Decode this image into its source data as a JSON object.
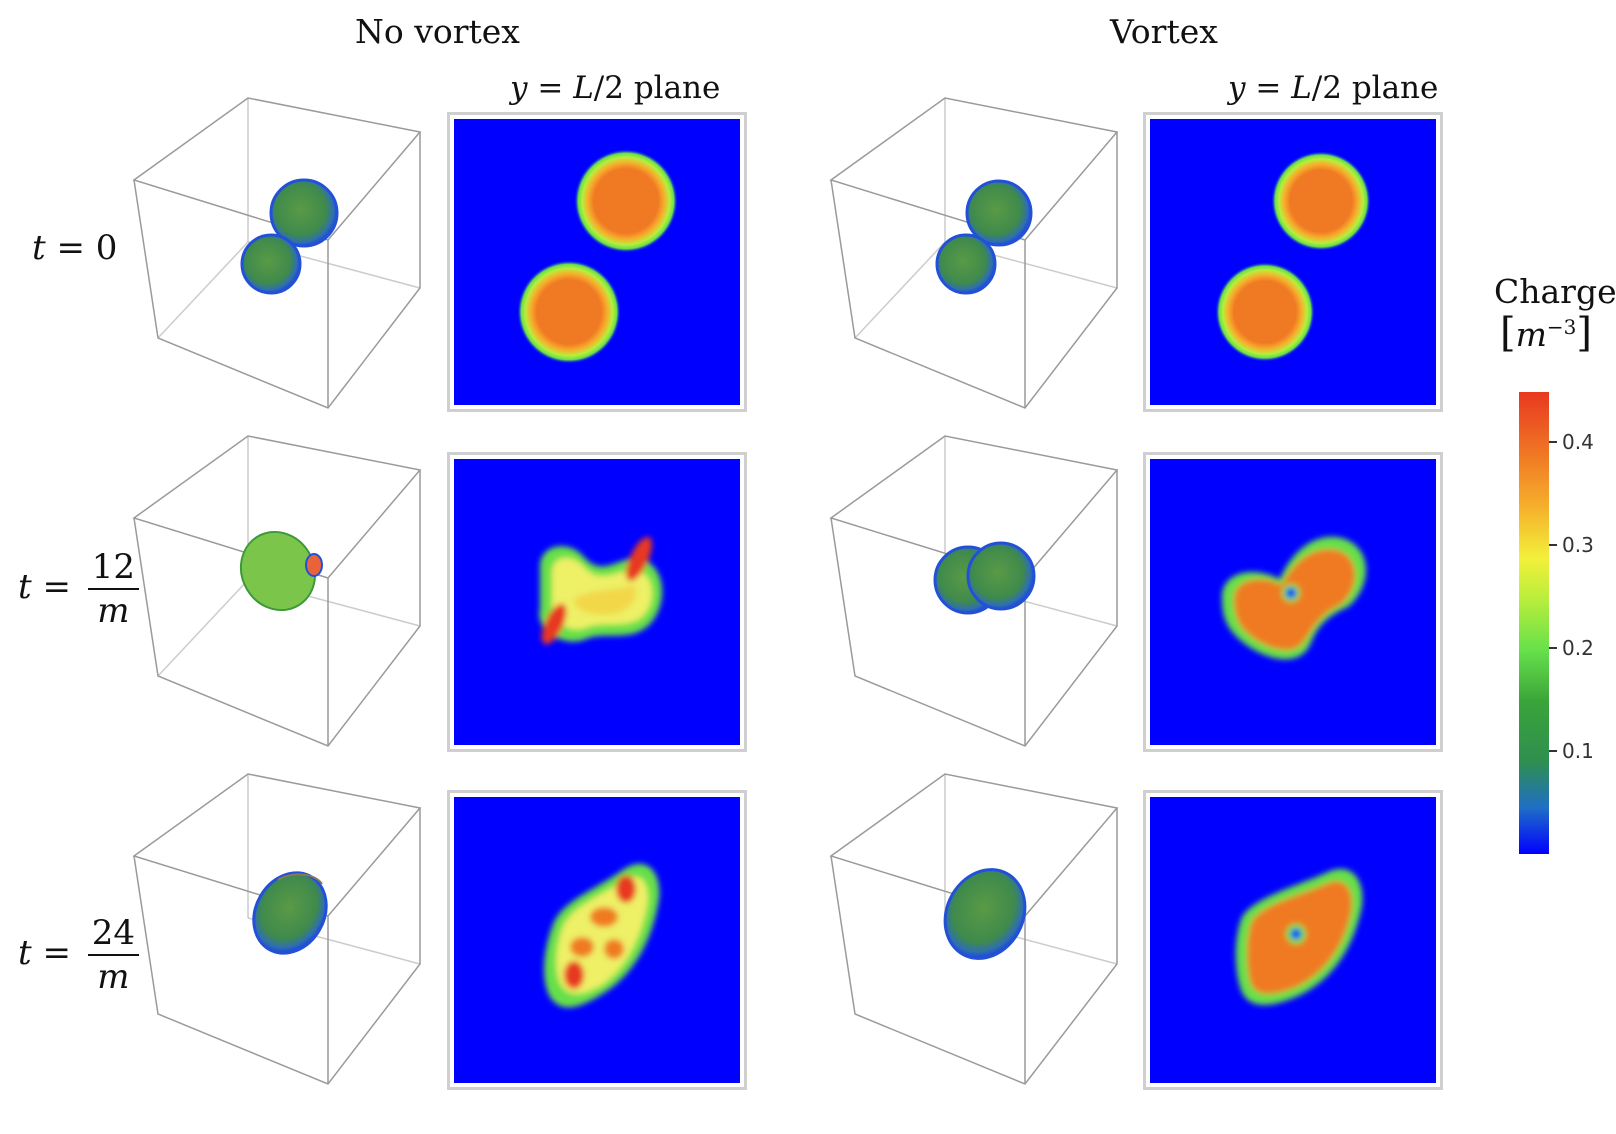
{
  "headers": {
    "left": "No vortex",
    "right": "Vortex"
  },
  "subheaders": {
    "var": "y",
    "eq": " = ",
    "L": "L",
    "rest": "/2 plane"
  },
  "rows": [
    {
      "t": "t",
      "eq": " = ",
      "value": "0"
    },
    {
      "t": "t",
      "eq": " = ",
      "num": "12",
      "den": "m"
    },
    {
      "t": "t",
      "eq": " = ",
      "num": "24",
      "den": "m"
    }
  ],
  "colorbar": {
    "title": "Charge",
    "unit_open": "[",
    "unit_base": "m",
    "unit_exp": "−3",
    "unit_close": "]",
    "ticks": [
      "0.4",
      "0.3",
      "0.2",
      "0.1"
    ],
    "range": [
      0,
      0.45
    ]
  },
  "colors": {
    "background_field": "#0000ff",
    "low": "#2f8f4f",
    "mid": "#66e04a",
    "high": "#f07a24",
    "max": "#e83820",
    "cube_edge": "#9a9a9a"
  }
}
